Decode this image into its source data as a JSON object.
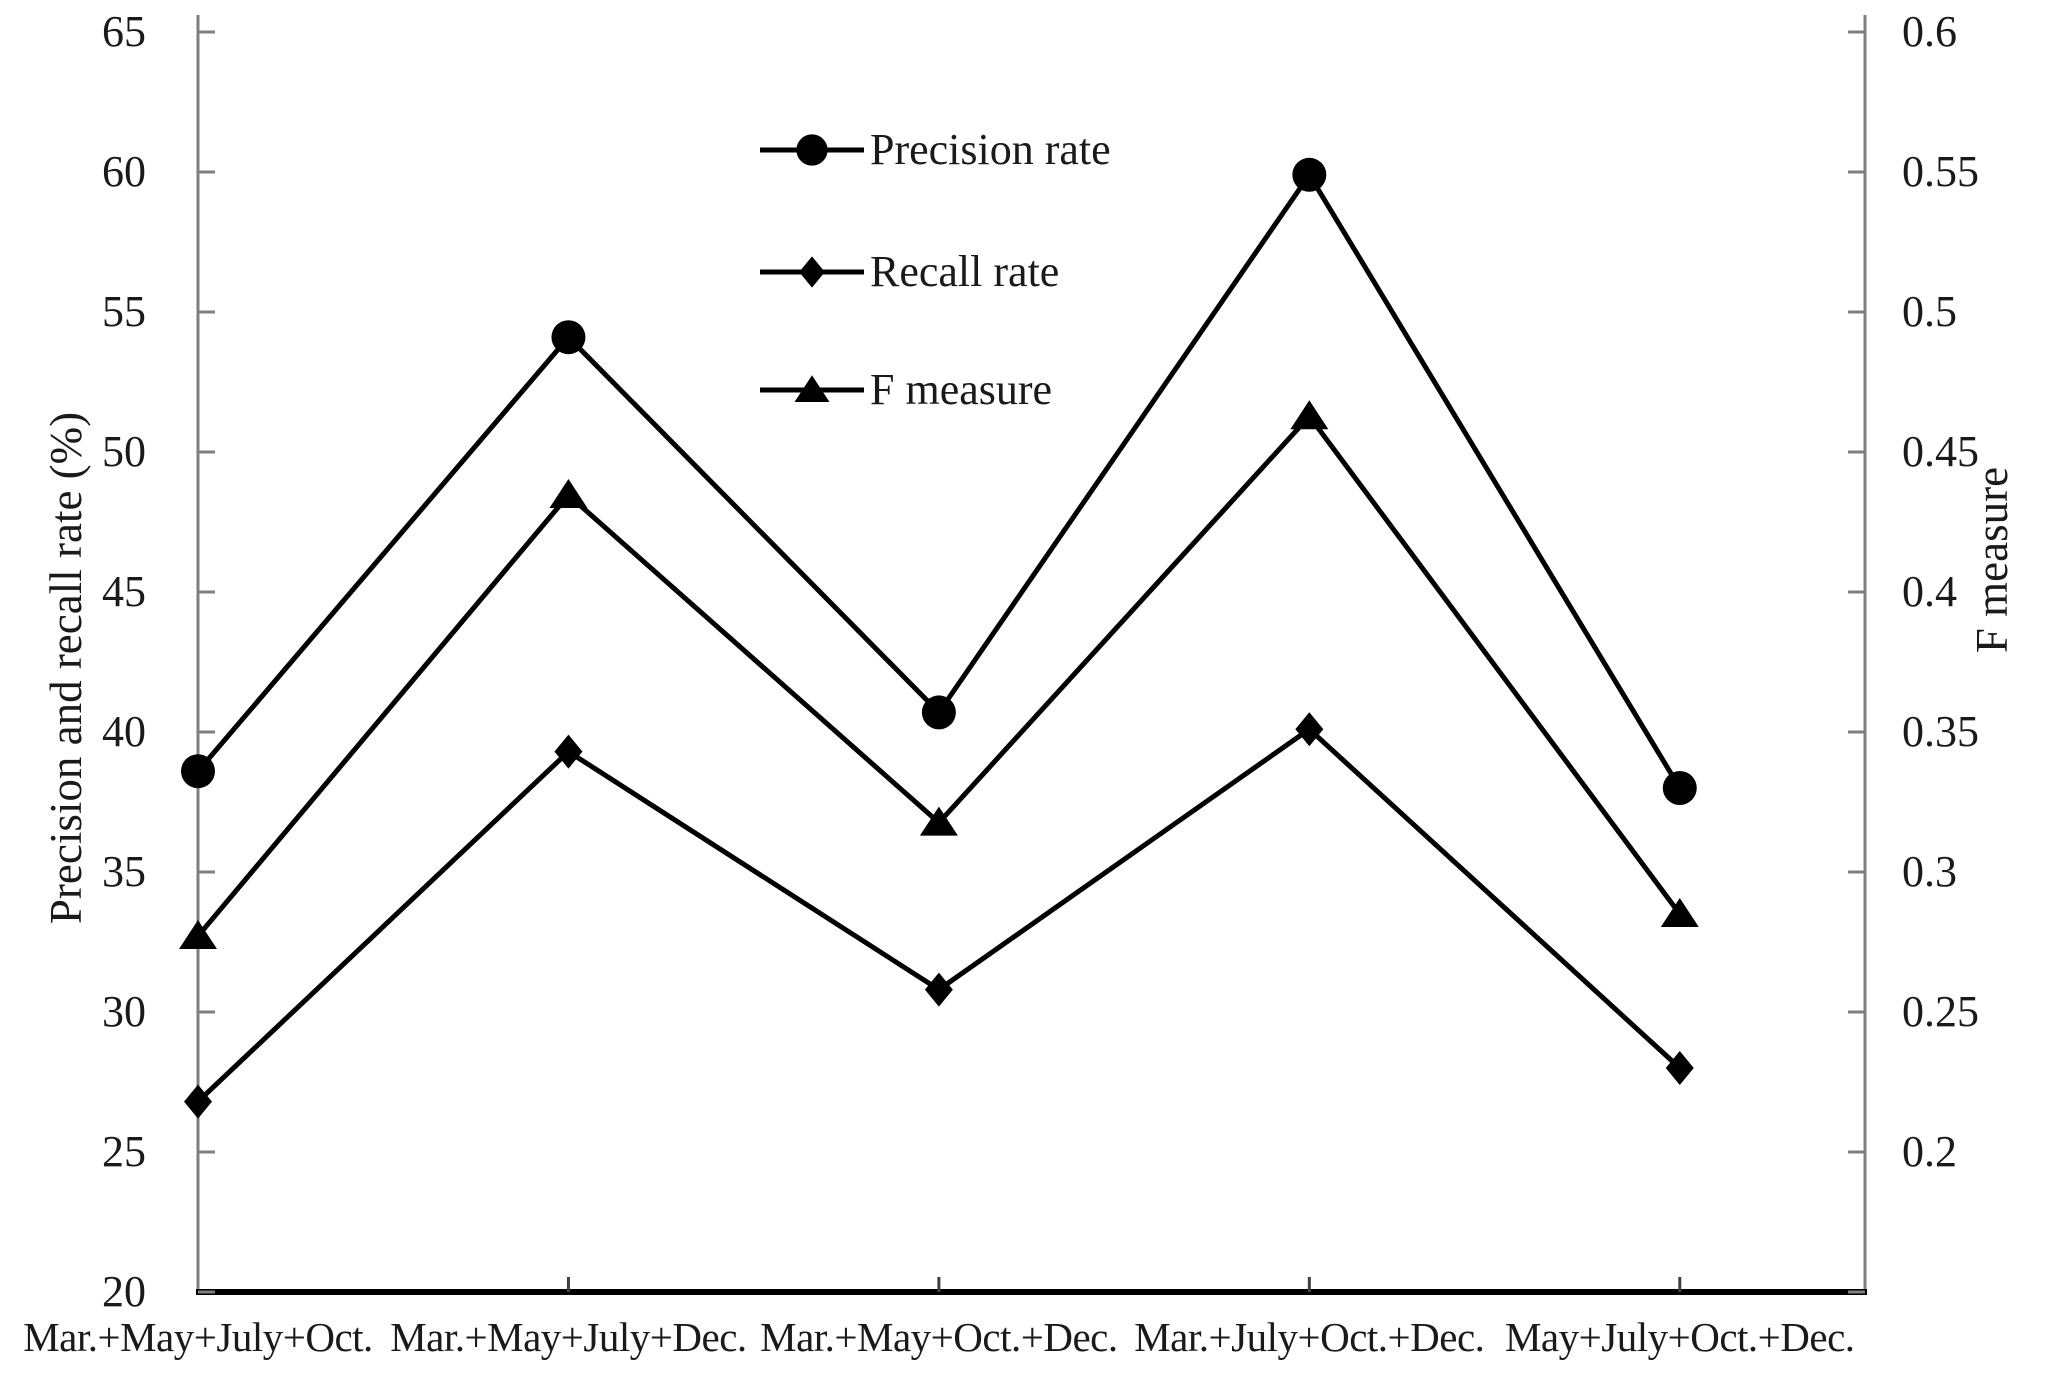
{
  "figure": {
    "background": "#ffffff"
  },
  "chart_data": {
    "type": "line",
    "title": "",
    "categories": [
      "Mar.+May+July+Oct.",
      "Mar.+May+July+Dec.",
      "Mar.+May+Oct.+Dec.",
      "Mar.+July+Oct.+Dec.",
      "May+July+Oct.+Dec."
    ],
    "series": [
      {
        "name": "Precision rate",
        "axis": "left",
        "marker": "circle",
        "values": [
          38.6,
          54.1,
          40.7,
          59.9,
          38.0
        ]
      },
      {
        "name": "Recall rate",
        "axis": "left",
        "marker": "diamond",
        "values": [
          26.8,
          39.3,
          30.8,
          40.1,
          28.0
        ]
      },
      {
        "name": "F measure",
        "axis": "right",
        "marker": "triangle",
        "values": [
          0.313,
          0.453,
          0.349,
          0.478,
          0.32
        ]
      }
    ],
    "left_axis": {
      "label": "Precision and recall rate (%)",
      "min": 20,
      "max": 65,
      "tick_step": 5,
      "tick_labels": [
        "65",
        "60",
        "55",
        "50",
        "45",
        "40",
        "35",
        "30",
        "25",
        "20"
      ]
    },
    "right_axis": {
      "label": "F measure",
      "min": 0.2,
      "max": 0.6,
      "tick_step": 0.05,
      "tick_labels": [
        "0.6",
        "0.55",
        "0.5",
        "0.45",
        "0.4",
        "0.35",
        "0.3",
        "0.25",
        "0.2"
      ]
    },
    "legend_position": "inside-top-center",
    "grid": false,
    "line_color": "#000000",
    "axis_line_color": "#7f7f7f",
    "baseline_color": "#000000",
    "text_color": "#1a1a1a"
  }
}
